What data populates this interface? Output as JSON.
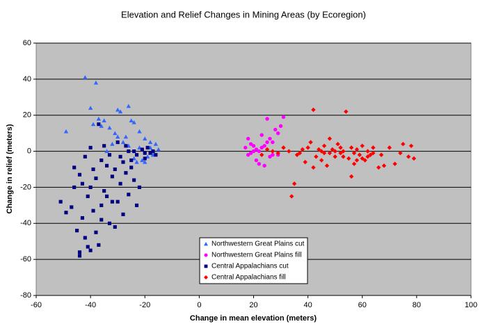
{
  "chart_data": {
    "type": "scatter",
    "title": "Elevation and Relief Changes in Mining Areas (by Ecoregion)",
    "x_label": "Change in mean elevation (meters)",
    "y_label": "Change in relief (meters)",
    "xlim": [
      -60,
      100
    ],
    "xticks": [
      -60,
      -40,
      -20,
      0,
      20,
      40,
      60,
      80,
      100
    ],
    "ylim": [
      -80,
      60
    ],
    "yticks": [
      -80,
      -60,
      -40,
      -20,
      0,
      20,
      40,
      60
    ],
    "grid": true,
    "plot_background": "#c0c0c0",
    "series": [
      {
        "name": "Northwestern Great Plains cut",
        "color": "#3366ff",
        "marker": "triangle",
        "x": [
          -49,
          -42,
          -38,
          -40,
          -37,
          -35,
          -33,
          -30,
          -29,
          -26,
          -25,
          -24,
          -27,
          -22,
          -20,
          -18,
          -16,
          -15,
          -17,
          -19,
          -21,
          -23,
          -28,
          -32,
          -36,
          -39,
          -31,
          -26,
          -22,
          -17,
          -34,
          -24,
          -20,
          -18,
          -30
        ],
        "y": [
          11,
          41,
          38,
          24,
          18,
          17,
          13,
          23,
          22,
          25,
          17,
          16,
          8,
          11,
          7,
          5,
          4,
          1,
          0,
          -3,
          -5,
          -6,
          5,
          4,
          14,
          15,
          10,
          3,
          2,
          -2,
          0,
          -4,
          -6,
          2,
          8
        ]
      },
      {
        "name": "Northwestern Great Plains fill",
        "color": "#ff00ff",
        "marker": "circle",
        "x": [
          17,
          18,
          19,
          20,
          18,
          21,
          22,
          23,
          24,
          25,
          26,
          27,
          28,
          29,
          30,
          31,
          24,
          20,
          22,
          27,
          19,
          23,
          26,
          21,
          29,
          25
        ],
        "y": [
          2,
          7,
          4,
          0,
          -2,
          -5,
          -7,
          9,
          -8,
          18,
          -3,
          5,
          12,
          10,
          14,
          19,
          3,
          3,
          0,
          -2,
          -1,
          2,
          7,
          1,
          -2,
          5
        ]
      },
      {
        "name": "Central Appalachians cut",
        "color": "#000080",
        "marker": "square",
        "x": [
          -51,
          -49,
          -47,
          -46,
          -45,
          -44,
          -44,
          -43,
          -42,
          -42,
          -41,
          -40,
          -40,
          -39,
          -38,
          -37,
          -37,
          -36,
          -35,
          -34,
          -33,
          -32,
          -31,
          -30,
          -30,
          -29,
          -28,
          -28,
          -27,
          -26,
          -26,
          -25,
          -24,
          -23,
          -22,
          -21,
          -20,
          -19,
          -18,
          -17,
          -16,
          -36,
          -34,
          -38,
          -41,
          -43,
          -39,
          -35,
          -33,
          -31,
          -29,
          -27,
          -25,
          -23,
          -40,
          -44,
          -46,
          -36,
          -32,
          -24,
          -20
        ],
        "y": [
          -28,
          -34,
          -31,
          -9,
          -44,
          -58,
          -56,
          -37,
          -48,
          -3,
          -53,
          -55,
          -20,
          -10,
          -45,
          -52,
          15,
          -30,
          -22,
          -8,
          -40,
          -14,
          -42,
          -28,
          5,
          -18,
          -6,
          -35,
          -12,
          0,
          -24,
          -9,
          -16,
          -2,
          -20,
          1,
          -4,
          2,
          -1,
          0,
          -2,
          -5,
          -25,
          -15,
          -25,
          -18,
          -33,
          3,
          -2,
          -10,
          -3,
          3,
          -5,
          -30,
          2,
          -13,
          -20,
          -38,
          -28,
          0,
          -1
        ]
      },
      {
        "name": "Central Appalachians fill",
        "color": "#ff0000",
        "marker": "diamond",
        "x": [
          23,
          25,
          27,
          29,
          31,
          33,
          34,
          35,
          36,
          38,
          39,
          40,
          42,
          42,
          43,
          44,
          45,
          46,
          47,
          48,
          48,
          49,
          50,
          51,
          52,
          53,
          54,
          55,
          56,
          56,
          57,
          58,
          59,
          60,
          61,
          62,
          63,
          64,
          66,
          68,
          70,
          72,
          74,
          75,
          77,
          78,
          79,
          37,
          41,
          46,
          50,
          53,
          57,
          60,
          64,
          45,
          52,
          58,
          62,
          67
        ],
        "y": [
          -2,
          1,
          0,
          -1,
          2,
          0,
          -25,
          -18,
          -2,
          1,
          -6,
          2,
          23,
          -9,
          -3,
          1,
          -5,
          3,
          -8,
          7,
          -1,
          1,
          -3,
          4,
          -1,
          0,
          22,
          -4,
          -14,
          2,
          -7,
          1,
          -2,
          3,
          -5,
          0,
          -2,
          -1,
          -9,
          -8,
          2,
          -7,
          -1,
          4,
          -3,
          3,
          -4,
          -1,
          5,
          -1,
          0,
          -3,
          -1,
          -4,
          2,
          0,
          2,
          -5,
          -3,
          -2
        ]
      }
    ]
  }
}
